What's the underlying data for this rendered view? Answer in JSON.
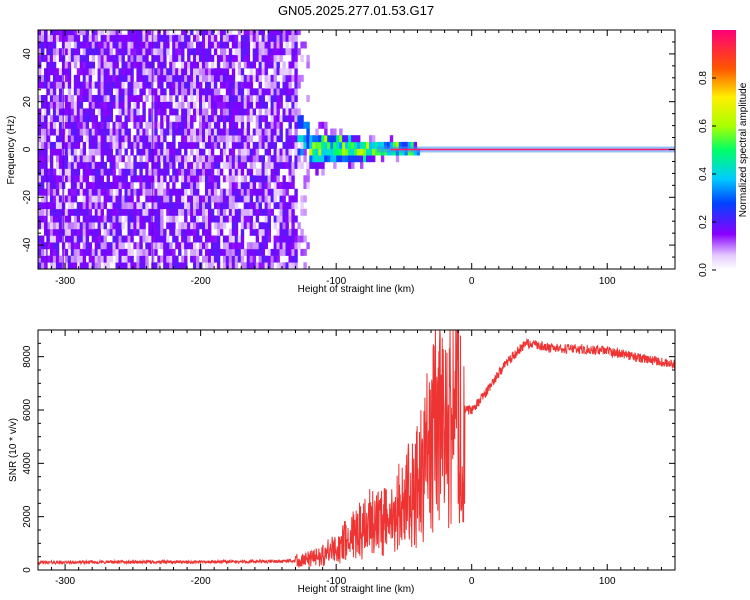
{
  "title": "GN05.2025.277.01.53.G17",
  "chart_data": [
    {
      "type": "heatmap",
      "xlabel": "Height of straight line (km)",
      "ylabel": "Frequency (Hz)",
      "xlim": [
        -320,
        150
      ],
      "ylim": [
        -50,
        50
      ],
      "x_ticks": [
        -300,
        -200,
        -100,
        0,
        100
      ],
      "y_ticks": [
        -40,
        -20,
        0,
        20,
        40
      ],
      "colorbar": {
        "label": "Normalized spectral amplitude",
        "range": [
          0,
          1
        ],
        "ticks": [
          0.0,
          0.2,
          0.4,
          0.6,
          0.8
        ]
      },
      "features": {
        "carrier_line_frequency": 0,
        "carrier_line_extent": [
          -50,
          150
        ],
        "noise_region_extent": [
          -320,
          -130
        ],
        "spreading_region_extent": [
          -150,
          -40
        ]
      }
    },
    {
      "type": "line",
      "xlabel": "Height of straight line (km)",
      "ylabel": "SNR (10 * v/v)",
      "xlim": [
        -320,
        150
      ],
      "ylim": [
        0,
        9000
      ],
      "x_ticks": [
        -300,
        -200,
        -100,
        0,
        100
      ],
      "y_ticks": [
        0,
        2000,
        4000,
        6000,
        8000
      ],
      "color": "#ee3333",
      "series": [
        {
          "x": [
            -320,
            -250,
            -200,
            -150,
            -130,
            -115,
            -100,
            -90,
            -80,
            -70,
            -60,
            -50,
            -40,
            -30,
            -25,
            -20,
            -15,
            -10,
            0,
            10,
            20,
            30,
            40,
            50,
            60,
            80,
            100,
            120,
            150
          ],
          "y": [
            280,
            300,
            300,
            320,
            340,
            450,
            800,
            1200,
            1600,
            2000,
            1700,
            2600,
            3200,
            4500,
            5500,
            4800,
            5600,
            6000,
            6000,
            6600,
            7400,
            8000,
            8500,
            8400,
            8300,
            8300,
            8200,
            8000,
            7700
          ]
        }
      ]
    }
  ]
}
